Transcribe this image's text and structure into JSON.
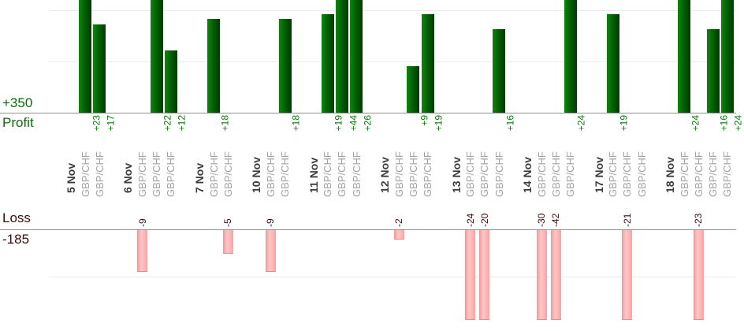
{
  "chart_data": {
    "type": "bar",
    "description": "Per-trade profit and loss bars grouped by date",
    "profit_axis": {
      "total_label": "+350",
      "name": "Profit",
      "total": 350
    },
    "loss_axis": {
      "name": "Loss",
      "total_label": "-185",
      "total": -185
    },
    "groups": [
      {
        "date": "5 Nov",
        "trades": [
          {
            "instrument": "GBP/CHF",
            "value": 23
          },
          {
            "instrument": "GBP/CHF",
            "value": 17
          }
        ]
      },
      {
        "date": "6 Nov",
        "trades": [
          {
            "instrument": "GBP/CHF",
            "value": -9
          },
          {
            "instrument": "GBP/CHF",
            "value": 22
          },
          {
            "instrument": "GBP/CHF",
            "value": 12
          }
        ]
      },
      {
        "date": "7 Nov",
        "trades": [
          {
            "instrument": "GBP/CHF",
            "value": 18
          },
          {
            "instrument": "GBP/CHF",
            "value": -5
          }
        ]
      },
      {
        "date": "10 Nov",
        "trades": [
          {
            "instrument": "GBP/CHF",
            "value": -9
          },
          {
            "instrument": "GBP/CHF",
            "value": 18
          }
        ]
      },
      {
        "date": "11 Nov",
        "trades": [
          {
            "instrument": "GBP/CHF",
            "value": 19
          },
          {
            "instrument": "GBP/CHF",
            "value": 44
          },
          {
            "instrument": "GBP/CHF",
            "value": 26
          }
        ]
      },
      {
        "date": "12 Nov",
        "trades": [
          {
            "instrument": "GBP/CHF",
            "value": -2
          },
          {
            "instrument": "GBP/CHF",
            "value": 9
          },
          {
            "instrument": "GBP/CHF",
            "value": 19
          }
        ]
      },
      {
        "date": "13 Nov",
        "trades": [
          {
            "instrument": "GBP/CHF",
            "value": -24
          },
          {
            "instrument": "GBP/CHF",
            "value": -20
          },
          {
            "instrument": "GBP/CHF",
            "value": 16
          }
        ]
      },
      {
        "date": "14 Nov",
        "trades": [
          {
            "instrument": "GBP/CHF",
            "value": -30
          },
          {
            "instrument": "GBP/CHF",
            "value": -42
          },
          {
            "instrument": "GBP/CHF",
            "value": 24
          }
        ]
      },
      {
        "date": "17 Nov",
        "trades": [
          {
            "instrument": "GBP/CHF",
            "value": 19
          },
          {
            "instrument": "GBP/CHF",
            "value": -21
          },
          {
            "instrument": "GBP/CHF",
            "value": 0
          }
        ]
      },
      {
        "date": "18 Nov",
        "trades": [
          {
            "instrument": "GBP/CHF",
            "value": 24
          },
          {
            "instrument": "GBP/CHF",
            "value": -23
          },
          {
            "instrument": "GBP/CHF",
            "value": 16
          },
          {
            "instrument": "GBP/CHF",
            "value": 24
          }
        ]
      }
    ],
    "colors": {
      "profit_text": "#067006",
      "loss_text": "#3d0b0b",
      "bar_green_light": "#0d870d",
      "bar_green_dark": "#003a00",
      "bar_pink": "#ffb2b2",
      "gridline": "#ebebeb",
      "baseline": "#919191",
      "date_text": "#3c3c3c",
      "instrument_text": "#a3a3a3"
    },
    "legend": "none",
    "grid": true
  }
}
